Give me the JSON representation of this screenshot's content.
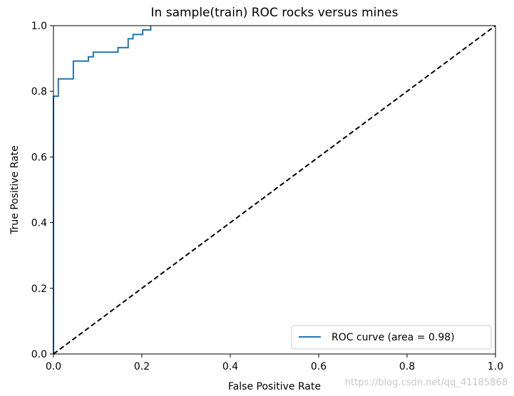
{
  "chart_data": {
    "type": "line",
    "title": "In sample(train) ROC rocks versus mines",
    "xlabel": "False Positive Rate",
    "ylabel": "True Positive Rate",
    "xlim": [
      0.0,
      1.0
    ],
    "ylim": [
      0.0,
      1.0
    ],
    "xticks": [
      0.0,
      0.2,
      0.4,
      0.6,
      0.8,
      1.0
    ],
    "yticks": [
      0.0,
      0.2,
      0.4,
      0.6,
      0.8,
      1.0
    ],
    "xtick_labels": [
      "0.0",
      "0.2",
      "0.4",
      "0.6",
      "0.8",
      "1.0"
    ],
    "ytick_labels": [
      "0.0",
      "0.2",
      "0.4",
      "0.6",
      "0.8",
      "1.0"
    ],
    "grid": false,
    "legend_position": "bottom-right",
    "series": [
      {
        "name": "ROC curve (area = 0.98)",
        "color": "#1f77b4",
        "style": "solid",
        "x": [
          0.0,
          0.0,
          0.011,
          0.011,
          0.045,
          0.045,
          0.079,
          0.079,
          0.09,
          0.09,
          0.146,
          0.146,
          0.169,
          0.169,
          0.18,
          0.18,
          0.202,
          0.202,
          0.22,
          0.22
        ],
        "y": [
          0.0,
          0.785,
          0.785,
          0.838,
          0.838,
          0.892,
          0.892,
          0.905,
          0.905,
          0.919,
          0.919,
          0.933,
          0.933,
          0.96,
          0.96,
          0.973,
          0.973,
          0.987,
          0.987,
          1.0
        ]
      },
      {
        "name": "",
        "color": "#000000",
        "style": "dashed",
        "x": [
          0.0,
          1.0
        ],
        "y": [
          0.0,
          1.0
        ]
      }
    ]
  },
  "watermark": "https://blog.csdn.net/qq_41185868"
}
